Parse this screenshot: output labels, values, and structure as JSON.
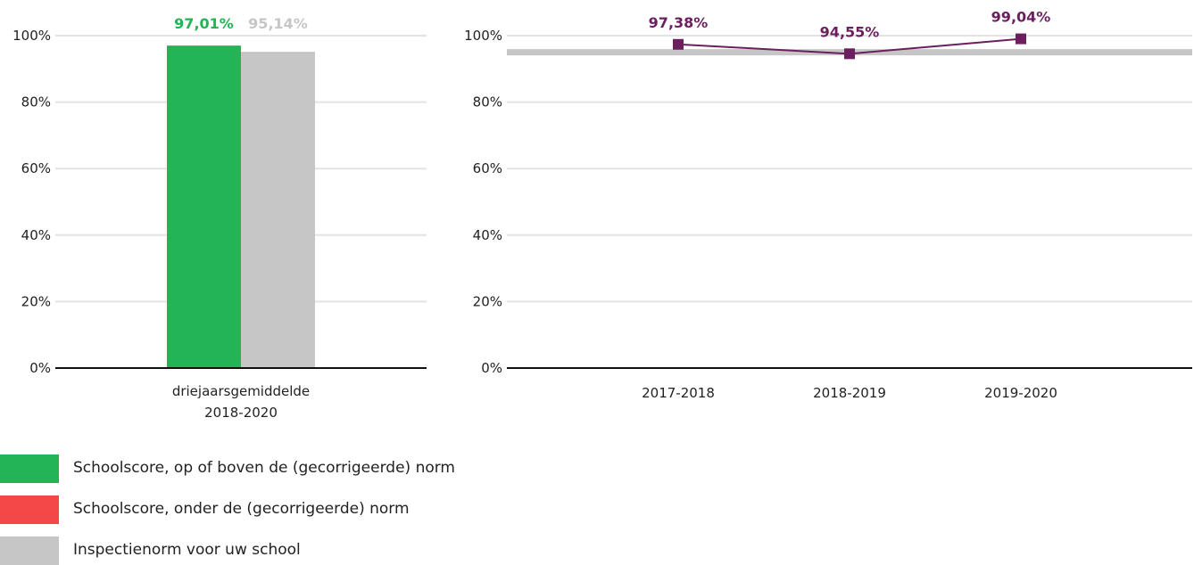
{
  "colors": {
    "green": "#22b455",
    "red": "#f44848",
    "grey": "#c6c6c6",
    "purple": "#6b1f5e",
    "grid": "#e3e3e3",
    "axis": "#111111"
  },
  "chart_data": [
    {
      "type": "bar",
      "categories": [
        "driejaarsgemiddelde\n2018-2020"
      ],
      "series": [
        {
          "name": "Schoolscore, op of boven de (gecorrigeerde) norm",
          "values": [
            97.01
          ],
          "label": "97,01%"
        },
        {
          "name": "Inspectienorm voor uw school",
          "values": [
            95.14
          ],
          "label": "95,14%"
        }
      ],
      "yticks": [
        "0%",
        "20%",
        "40%",
        "60%",
        "80%",
        "100%"
      ],
      "ylim": [
        0,
        100
      ],
      "grid": true
    },
    {
      "type": "line",
      "categories": [
        "2017-2018",
        "2018-2019",
        "2019-2020"
      ],
      "series": [
        {
          "values": [
            97.38,
            94.55,
            99.04
          ],
          "labels": [
            "97,38%",
            "94,55%",
            "99,04%"
          ]
        }
      ],
      "norm_band": 95.14,
      "yticks": [
        "0%",
        "20%",
        "40%",
        "60%",
        "80%",
        "100%"
      ],
      "ylim": [
        0,
        100
      ],
      "grid": true
    }
  ],
  "legend": [
    {
      "label": "Schoolscore, op of boven de (gecorrigeerde) norm",
      "color": "#22b455"
    },
    {
      "label": "Schoolscore, onder de (gecorrigeerde) norm",
      "color": "#f44848"
    },
    {
      "label": "Inspectienorm voor uw school",
      "color": "#c6c6c6"
    }
  ]
}
